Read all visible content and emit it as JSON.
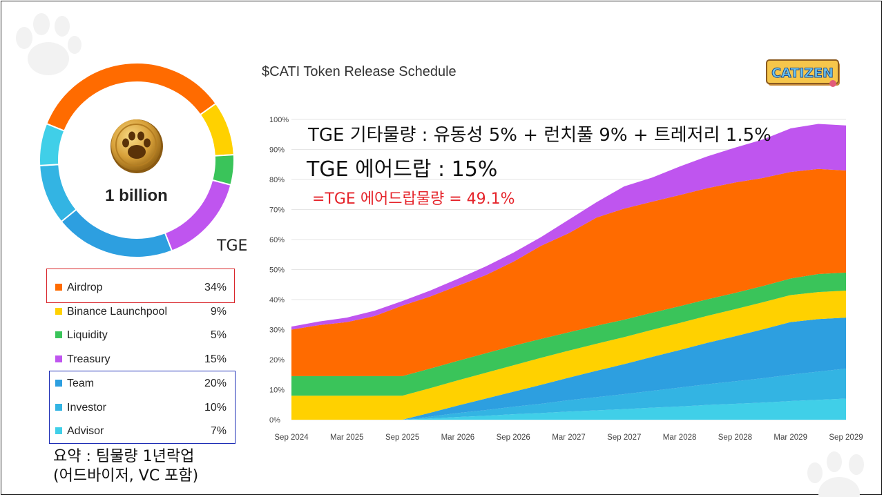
{
  "colors": {
    "airdrop": "#ff6b00",
    "binance": "#ffd100",
    "liquidity": "#3ac45a",
    "treasury": "#bf55ef",
    "team": "#2d9fe0",
    "investor": "#33b4e3",
    "advisor": "#40cfe8",
    "highlight_red": "#e5242b",
    "highlight_blue": "#1d2db5"
  },
  "logo": {
    "text": "CATIZEN"
  },
  "donut": {
    "center_label": "1 billion",
    "icon": "paw-coin-icon"
  },
  "tge_label": "TGE",
  "legend": [
    {
      "label": "Airdrop",
      "pct": "34%"
    },
    {
      "label": "Binance Launchpool",
      "pct": "9%"
    },
    {
      "label": "Liquidity",
      "pct": "5%"
    },
    {
      "label": "Treasury",
      "pct": "15%"
    },
    {
      "label": "Team",
      "pct": "20%"
    },
    {
      "label": "Investor",
      "pct": "10%"
    },
    {
      "label": "Advisor",
      "pct": "7%"
    }
  ],
  "summary": {
    "line1": "요약 : 팀물량 1년락업",
    "line2": "(어드바이저, VC 포함)"
  },
  "annotations": {
    "line1": "TGE 기타물량 : 유동성 5% + 런치풀 9% + 트레저리 1.5%",
    "line2": "TGE 에어드랍 : 15%",
    "line3": "=TGE 에어드랍물량 = 49.1%"
  },
  "chart_data": [
    {
      "type": "pie",
      "categories": [
        "Airdrop",
        "Binance Launchpool",
        "Liquidity",
        "Treasury",
        "Team",
        "Investor",
        "Advisor"
      ],
      "values": [
        34,
        9,
        5,
        15,
        20,
        10,
        7
      ]
    },
    {
      "type": "area",
      "title": "$CATI Token Release Schedule",
      "x": [
        "2024-09",
        "2024-12",
        "2025-03",
        "2025-06",
        "2025-09",
        "2025-12",
        "2026-03",
        "2026-06",
        "2026-09",
        "2026-12",
        "2027-03",
        "2027-06",
        "2027-09",
        "2027-12",
        "2028-03",
        "2028-06",
        "2028-09",
        "2028-12",
        "2029-03",
        "2029-06",
        "2029-09"
      ],
      "x_ticks": [
        "Sep 2024",
        "Mar 2025",
        "Sep 2025",
        "Mar 2026",
        "Sep 2026",
        "Mar 2027",
        "Sep 2027",
        "Mar 2028",
        "Sep 2028",
        "Mar 2029",
        "Sep 2029"
      ],
      "y_ticks": [
        "0%",
        "10%",
        "20%",
        "30%",
        "40%",
        "50%",
        "60%",
        "70%",
        "80%",
        "90%",
        "100%"
      ],
      "ylim": [
        0,
        100
      ],
      "series": [
        {
          "name": "Advisor",
          "values": [
            0,
            0,
            0,
            0,
            0,
            0.4,
            0.9,
            1.3,
            1.8,
            2.2,
            2.7,
            3.1,
            3.5,
            4.0,
            4.4,
            4.9,
            5.3,
            5.7,
            6.2,
            6.6,
            7.0
          ]
        },
        {
          "name": "Investor",
          "values": [
            0,
            0,
            0,
            0,
            0,
            0.6,
            1.3,
            1.9,
            2.5,
            3.1,
            3.8,
            4.4,
            5.0,
            5.6,
            6.3,
            6.9,
            7.5,
            8.1,
            8.8,
            9.4,
            10.0
          ]
        },
        {
          "name": "Team",
          "values": [
            0,
            0,
            0,
            0,
            0,
            1.3,
            2.5,
            3.8,
            5.0,
            6.3,
            7.5,
            8.8,
            10.0,
            11.3,
            12.5,
            13.8,
            15.0,
            16.3,
            17.5,
            17.5,
            17.0
          ]
        },
        {
          "name": "Binance Launchpool",
          "values": [
            8,
            8,
            8,
            8,
            8,
            8.2,
            8.4,
            8.6,
            8.8,
            9,
            9,
            9,
            9,
            9,
            9,
            9,
            9,
            9,
            9,
            9,
            9
          ]
        },
        {
          "name": "Liquidity",
          "values": [
            6.5,
            6.5,
            6.5,
            6.5,
            6.5,
            6.5,
            6.5,
            6.5,
            6.5,
            6.3,
            6.1,
            6.0,
            5.8,
            5.7,
            5.6,
            5.5,
            5.4,
            5.4,
            5.5,
            6,
            6
          ]
        },
        {
          "name": "Airdrop",
          "values": [
            15.5,
            17,
            18,
            20,
            23.5,
            24,
            25,
            26,
            28,
            31,
            33,
            36,
            37,
            37,
            37,
            37,
            36.8,
            36,
            35.5,
            35,
            34
          ]
        },
        {
          "name": "Treasury",
          "values": [
            1.0,
            1.2,
            1.5,
            1.8,
            1.5,
            2.0,
            2.3,
            2.9,
            3.0,
            2.9,
            4.5,
            5.1,
            7.4,
            8.0,
            9.5,
            10.6,
            11.6,
            12.8,
            14.5,
            15.0,
            15.0
          ]
        }
      ]
    }
  ]
}
